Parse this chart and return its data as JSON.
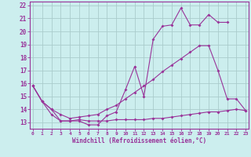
{
  "x": [
    0,
    1,
    2,
    3,
    4,
    5,
    6,
    7,
    8,
    9,
    10,
    11,
    12,
    13,
    14,
    15,
    16,
    17,
    18,
    19,
    20,
    21,
    22,
    23
  ],
  "line1": [
    15.8,
    14.6,
    13.6,
    13.1,
    13.1,
    13.2,
    13.1,
    13.1,
    13.1,
    13.2,
    13.2,
    13.2,
    13.2,
    13.3,
    13.3,
    13.4,
    13.5,
    13.6,
    13.7,
    13.8,
    13.8,
    13.9,
    14.0,
    13.9
  ],
  "line2": [
    15.8,
    14.6,
    14.0,
    13.6,
    13.3,
    13.4,
    13.5,
    13.6,
    14.0,
    14.3,
    14.8,
    15.3,
    15.8,
    16.3,
    16.9,
    17.4,
    17.9,
    18.4,
    18.9,
    18.9,
    17.0,
    14.8,
    14.8,
    13.9
  ],
  "line3": [
    15.8,
    14.6,
    14.0,
    13.1,
    13.1,
    13.1,
    12.8,
    12.8,
    13.5,
    13.8,
    15.5,
    17.3,
    15.0,
    19.4,
    20.4,
    20.5,
    21.8,
    20.5,
    20.5,
    21.3,
    20.7,
    20.7,
    null,
    null
  ],
  "color": "#993399",
  "bg_color": "#cceeee",
  "grid_color": "#aacccc",
  "xlabel": "Windchill (Refroidissement éolien,°C)",
  "ylim_min": 12.5,
  "ylim_max": 22.3,
  "xlim_min": -0.3,
  "xlim_max": 23.3,
  "yticks": [
    13,
    14,
    15,
    16,
    17,
    18,
    19,
    20,
    21,
    22
  ],
  "xticks": [
    0,
    1,
    2,
    3,
    4,
    5,
    6,
    7,
    8,
    9,
    10,
    11,
    12,
    13,
    14,
    15,
    16,
    17,
    18,
    19,
    20,
    21,
    22,
    23
  ]
}
